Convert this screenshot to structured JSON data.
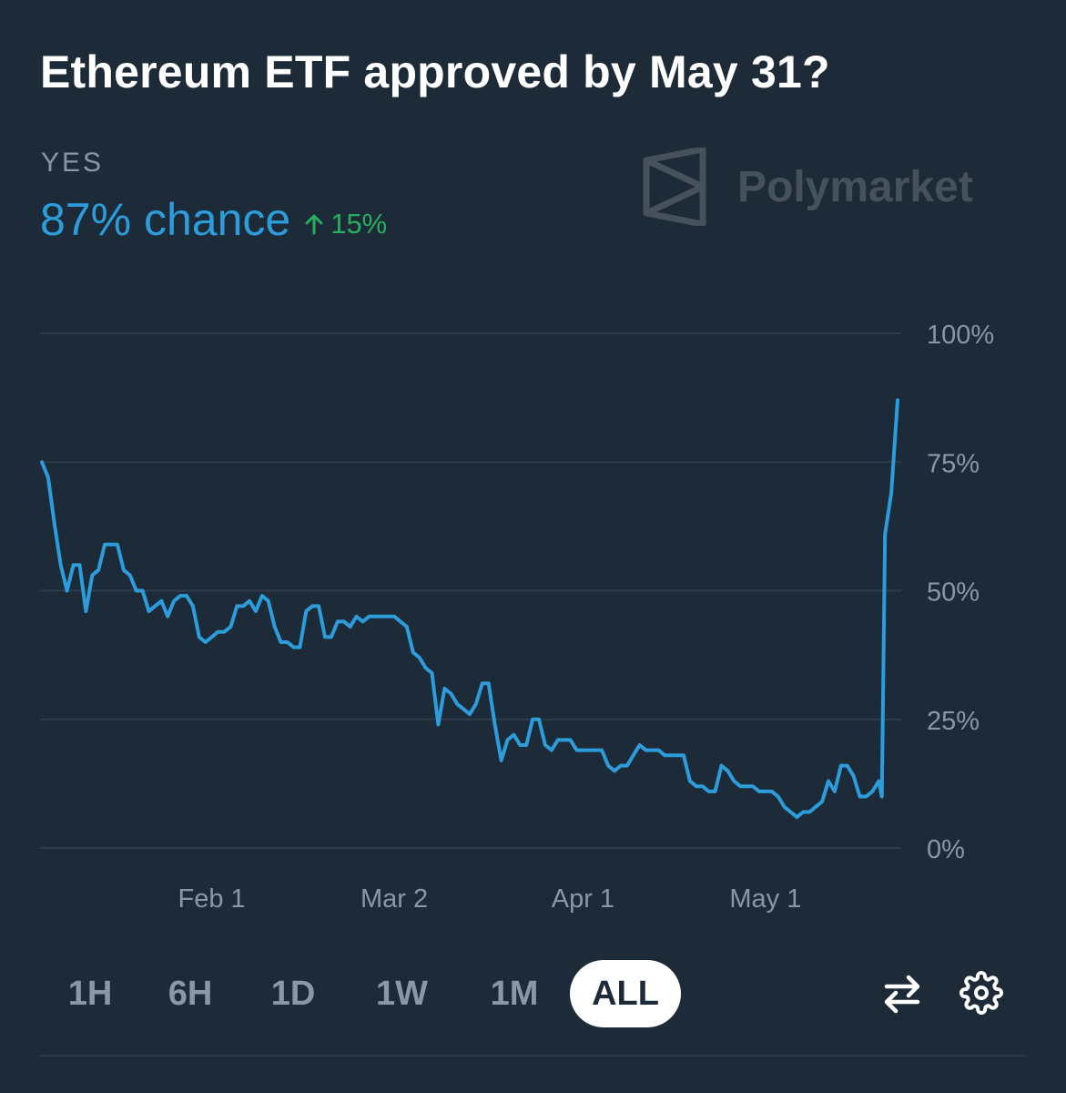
{
  "header": {
    "title": "Ethereum ETF approved by May 31?",
    "outcome_label": "YES",
    "chance_text": "87% chance",
    "delta_text": "15%",
    "brand": "Polymarket"
  },
  "colors": {
    "background": "#1d2b39",
    "line": "#2d9cdb",
    "positive": "#27ae60",
    "grid": "#2f3d4b",
    "axis_text": "#8a97a6",
    "watermark": "#46515d"
  },
  "timeframes": [
    "1H",
    "6H",
    "1D",
    "1W",
    "1M",
    "ALL"
  ],
  "active_timeframe": "ALL",
  "icons": [
    "arrow-up-icon",
    "polymarket-logo-icon",
    "swap-arrows-icon",
    "gear-icon"
  ],
  "chart_data": {
    "type": "line",
    "x_unit": "day index (0 = Jan 5)",
    "x_tick_labels": [
      "Feb 1",
      "Mar 2",
      "Apr 1",
      "May 1"
    ],
    "x_tick_values": [
      27,
      56,
      86,
      115
    ],
    "y_tick_labels": [
      "100%",
      "75%",
      "50%",
      "25%",
      "0%"
    ],
    "y_tick_values": [
      100,
      75,
      50,
      25,
      0
    ],
    "ylim": [
      0,
      100
    ],
    "xlim": [
      0,
      134
    ],
    "grid": "horizontal",
    "series": [
      {
        "values": [
          [
            0,
            75
          ],
          [
            1,
            72
          ],
          [
            2,
            63
          ],
          [
            3,
            55
          ],
          [
            4,
            50
          ],
          [
            5,
            55
          ],
          [
            6,
            55
          ],
          [
            7,
            46
          ],
          [
            8,
            53
          ],
          [
            9,
            54
          ],
          [
            10,
            59
          ],
          [
            11,
            59
          ],
          [
            12,
            59
          ],
          [
            13,
            54
          ],
          [
            14,
            53
          ],
          [
            15,
            50
          ],
          [
            16,
            50
          ],
          [
            17,
            46
          ],
          [
            18,
            47
          ],
          [
            19,
            48
          ],
          [
            20,
            45
          ],
          [
            21,
            48
          ],
          [
            22,
            49
          ],
          [
            23,
            49
          ],
          [
            24,
            47
          ],
          [
            25,
            41
          ],
          [
            26,
            40
          ],
          [
            27,
            41
          ],
          [
            28,
            42
          ],
          [
            29,
            42
          ],
          [
            30,
            43
          ],
          [
            31,
            47
          ],
          [
            32,
            47
          ],
          [
            33,
            48
          ],
          [
            34,
            46
          ],
          [
            35,
            49
          ],
          [
            36,
            48
          ],
          [
            37,
            43
          ],
          [
            38,
            40
          ],
          [
            39,
            40
          ],
          [
            40,
            39
          ],
          [
            41,
            39
          ],
          [
            42,
            46
          ],
          [
            43,
            47
          ],
          [
            44,
            47
          ],
          [
            45,
            41
          ],
          [
            46,
            41
          ],
          [
            47,
            44
          ],
          [
            48,
            44
          ],
          [
            49,
            43
          ],
          [
            50,
            45
          ],
          [
            51,
            44
          ],
          [
            52,
            45
          ],
          [
            53,
            45
          ],
          [
            54,
            45
          ],
          [
            55,
            45
          ],
          [
            56,
            45
          ],
          [
            57,
            44
          ],
          [
            58,
            43
          ],
          [
            59,
            38
          ],
          [
            60,
            37
          ],
          [
            61,
            35
          ],
          [
            62,
            34
          ],
          [
            63,
            24
          ],
          [
            64,
            31
          ],
          [
            65,
            30
          ],
          [
            66,
            28
          ],
          [
            67,
            27
          ],
          [
            68,
            26
          ],
          [
            69,
            28
          ],
          [
            70,
            32
          ],
          [
            71,
            32
          ],
          [
            72,
            24
          ],
          [
            73,
            17
          ],
          [
            74,
            21
          ],
          [
            75,
            22
          ],
          [
            76,
            20
          ],
          [
            77,
            20
          ],
          [
            78,
            25
          ],
          [
            79,
            25
          ],
          [
            80,
            20
          ],
          [
            81,
            19
          ],
          [
            82,
            21
          ],
          [
            83,
            21
          ],
          [
            84,
            21
          ],
          [
            85,
            19
          ],
          [
            86,
            19
          ],
          [
            87,
            19
          ],
          [
            88,
            19
          ],
          [
            89,
            19
          ],
          [
            90,
            16
          ],
          [
            91,
            15
          ],
          [
            92,
            16
          ],
          [
            93,
            16
          ],
          [
            94,
            18
          ],
          [
            95,
            20
          ],
          [
            96,
            19
          ],
          [
            97,
            19
          ],
          [
            98,
            19
          ],
          [
            99,
            18
          ],
          [
            100,
            18
          ],
          [
            101,
            18
          ],
          [
            102,
            18
          ],
          [
            103,
            13
          ],
          [
            104,
            12
          ],
          [
            105,
            12
          ],
          [
            106,
            11
          ],
          [
            107,
            11
          ],
          [
            108,
            16
          ],
          [
            109,
            15
          ],
          [
            110,
            13
          ],
          [
            111,
            12
          ],
          [
            112,
            12
          ],
          [
            113,
            12
          ],
          [
            114,
            11
          ],
          [
            115,
            11
          ],
          [
            116,
            11
          ],
          [
            117,
            10
          ],
          [
            118,
            8
          ],
          [
            119,
            7
          ],
          [
            120,
            6
          ],
          [
            121,
            7
          ],
          [
            122,
            7
          ],
          [
            123,
            8
          ],
          [
            124,
            9
          ],
          [
            125,
            13
          ],
          [
            126,
            11
          ],
          [
            127,
            16
          ],
          [
            128,
            16
          ],
          [
            129,
            14
          ],
          [
            130,
            10
          ],
          [
            131,
            10
          ],
          [
            132,
            11
          ],
          [
            133,
            13
          ],
          [
            133.5,
            10
          ],
          [
            134,
            61
          ],
          [
            135,
            69
          ],
          [
            136,
            87
          ]
        ]
      }
    ]
  }
}
